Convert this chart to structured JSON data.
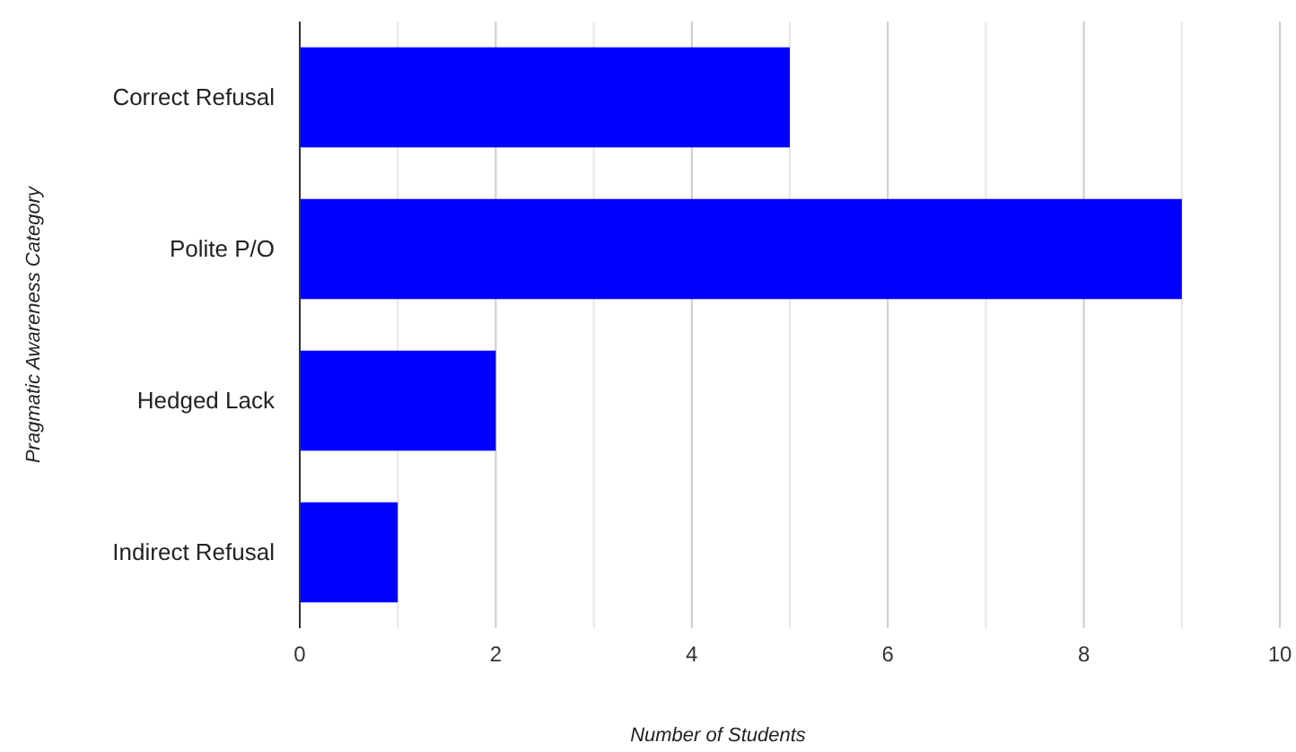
{
  "chart_data": {
    "type": "bar",
    "orientation": "horizontal",
    "categories": [
      "Correct Refusal",
      "Polite P/O",
      "Hedged Lack",
      "Indirect Refusal"
    ],
    "values": [
      5,
      9,
      2,
      1
    ],
    "color": "#0000ff",
    "xlabel": "Number of Students",
    "ylabel": "Pragmatic Awareness Category",
    "xlim": [
      0,
      10
    ],
    "xticks": [
      0,
      {
        "value": 1,
        "label": null
      },
      2,
      {
        "value": 3,
        "label": null
      },
      4,
      {
        "value": 5,
        "label": null
      },
      6,
      {
        "value": 7,
        "label": null
      },
      8,
      {
        "value": 9,
        "label": null
      },
      10
    ],
    "grid": "x"
  }
}
